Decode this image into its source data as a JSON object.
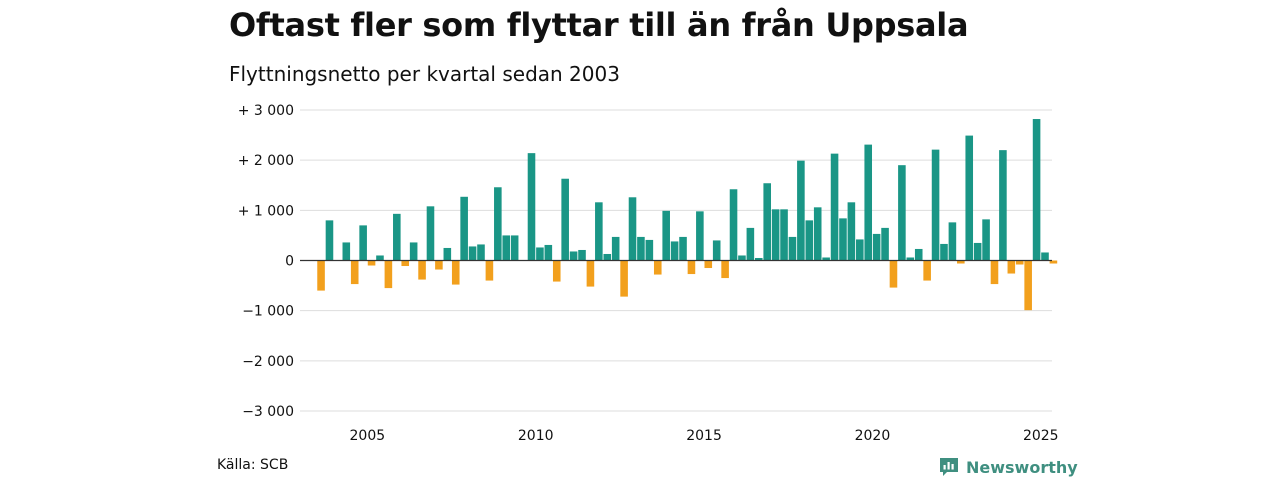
{
  "title": "Oftast fler som flyttar till än från Uppsala",
  "subtitle": "Flyttningsnetto per kvartal sedan 2003",
  "source": "Källa: SCB",
  "brand": "Newsworthy",
  "colors": {
    "positive": "#1a9686",
    "negative": "#f2a01d",
    "grid": "#dddddd",
    "brand": "#3f8f80"
  },
  "chart_data": {
    "type": "bar",
    "start_year": 2003,
    "start_quarter": 3,
    "xticks": [
      "2005",
      "2010",
      "2015",
      "2020",
      "2025"
    ],
    "yticks": [
      {
        "value": 3000,
        "label": "+ 3 000"
      },
      {
        "value": 2000,
        "label": "+ 2 000"
      },
      {
        "value": 1000,
        "label": "+ 1 000"
      },
      {
        "value": 0,
        "label": "0"
      },
      {
        "value": -1000,
        "label": "−1 000"
      },
      {
        "value": -2000,
        "label": "−2 000"
      },
      {
        "value": -3000,
        "label": "−3 000"
      }
    ],
    "ylim": [
      -3000,
      3000
    ],
    "grid": true,
    "values": [
      -600,
      800,
      0,
      360,
      -470,
      700,
      -100,
      100,
      -550,
      930,
      -110,
      360,
      -380,
      1080,
      -180,
      250,
      -480,
      1270,
      280,
      320,
      -400,
      1460,
      500,
      500,
      0,
      2140,
      260,
      310,
      -420,
      1630,
      180,
      210,
      -520,
      1160,
      130,
      470,
      -720,
      1260,
      470,
      410,
      -280,
      990,
      380,
      470,
      -270,
      980,
      -150,
      400,
      -350,
      1420,
      100,
      650,
      50,
      1540,
      1020,
      1020,
      470,
      1990,
      800,
      1060,
      60,
      2130,
      840,
      1160,
      420,
      2310,
      530,
      650,
      -540,
      1900,
      60,
      230,
      -400,
      2210,
      330,
      760,
      -60,
      2490,
      350,
      820,
      -470,
      2200,
      -260,
      -80,
      -990,
      2820,
      160,
      -60
    ]
  }
}
